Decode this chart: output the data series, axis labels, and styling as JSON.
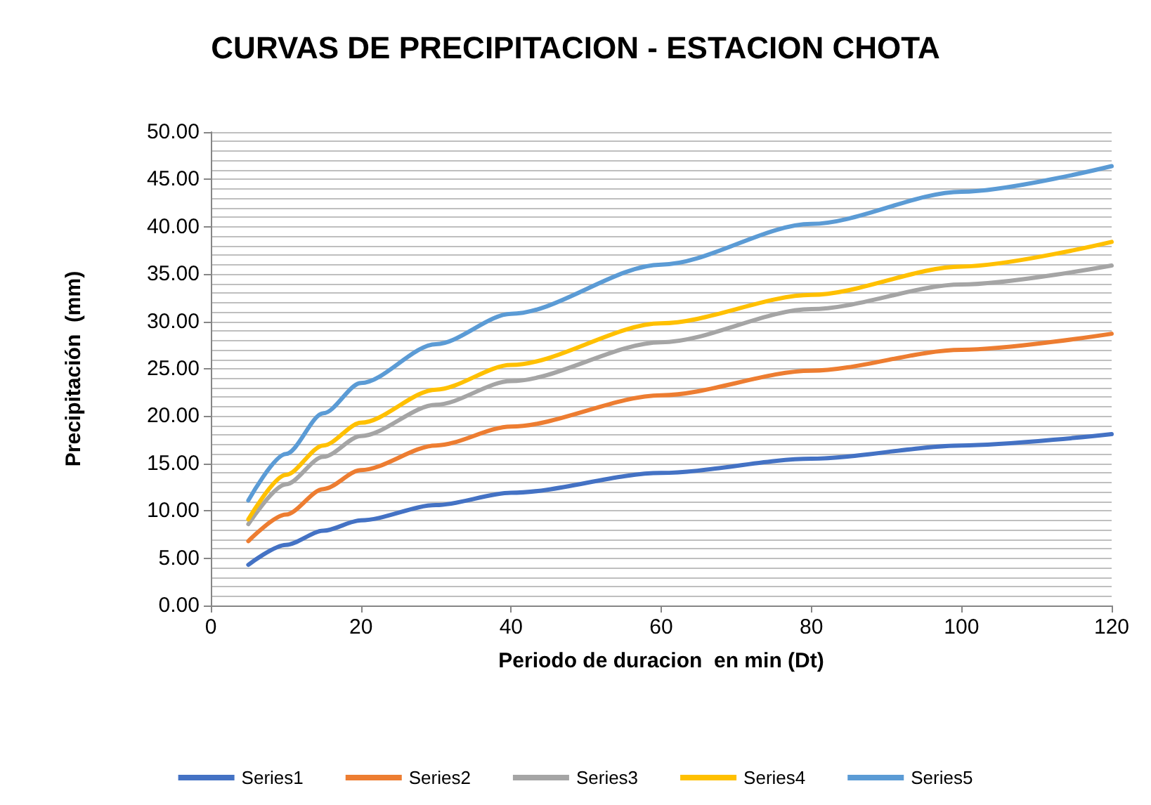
{
  "chart_data": {
    "type": "line",
    "title": "CURVAS DE PRECIPITACION - ESTACION CHOTA",
    "xlabel": "Periodo de duracion  en min (Dt)",
    "ylabel": "Precipitación  (mm)",
    "x": [
      5,
      10,
      15,
      20,
      30,
      40,
      60,
      80,
      100,
      120
    ],
    "series": [
      {
        "name": "Series1",
        "color": "#4472c4",
        "values": [
          4.3,
          6.4,
          7.9,
          9.0,
          10.6,
          11.9,
          14.0,
          15.5,
          16.9,
          18.1
        ]
      },
      {
        "name": "Series2",
        "color": "#ed7d31",
        "values": [
          6.8,
          9.6,
          12.3,
          14.3,
          16.9,
          18.9,
          22.2,
          24.8,
          27.0,
          28.7
        ]
      },
      {
        "name": "Series3",
        "color": "#a5a5a5",
        "values": [
          8.6,
          12.8,
          15.7,
          17.9,
          21.2,
          23.7,
          27.8,
          31.3,
          33.9,
          35.9
        ]
      },
      {
        "name": "Series4",
        "color": "#ffc000",
        "values": [
          9.1,
          13.8,
          16.9,
          19.3,
          22.8,
          25.4,
          29.8,
          32.8,
          35.8,
          38.4
        ]
      },
      {
        "name": "Series5",
        "color": "#5b9bd5",
        "values": [
          11.1,
          16.0,
          20.3,
          23.5,
          27.6,
          30.8,
          36.0,
          40.3,
          43.7,
          46.4
        ]
      }
    ],
    "xlim": [
      0,
      120
    ],
    "xticks": [
      0,
      20,
      40,
      60,
      80,
      100,
      120
    ],
    "ylim": [
      0,
      50
    ],
    "yticks": [
      {
        "value": 0,
        "label": "0.00"
      },
      {
        "value": 5,
        "label": "5.00"
      },
      {
        "value": 10,
        "label": "10.00"
      },
      {
        "value": 15,
        "label": "15.00"
      },
      {
        "value": 20,
        "label": "20.00"
      },
      {
        "value": 25,
        "label": "25.00"
      },
      {
        "value": 30,
        "label": "30.00"
      },
      {
        "value": 35,
        "label": "35.00"
      },
      {
        "value": 40,
        "label": "40.00"
      },
      {
        "value": 45,
        "label": "45.00"
      },
      {
        "value": 50,
        "label": "50.00"
      }
    ],
    "grid": "y",
    "legend": "bottom",
    "marker": "none",
    "line_style": "solid"
  }
}
